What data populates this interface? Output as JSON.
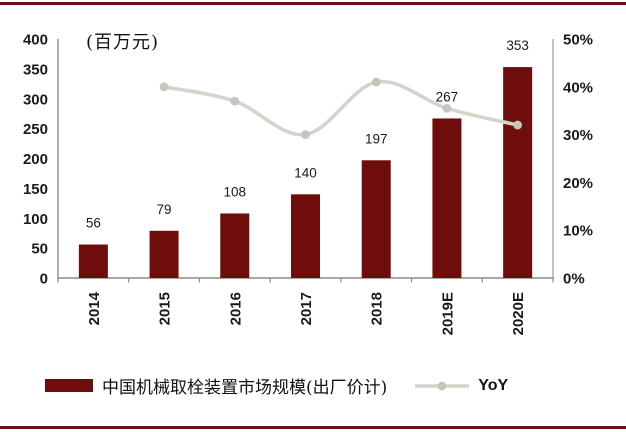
{
  "accent": "#6F0D0D",
  "line_color": "#D5D3CC",
  "marker_color": "#C6C4BD",
  "axis_line_color": "#8C8C8C",
  "right_axis_line_color": "#ACACAC",
  "unit_label": "(百万元)",
  "legend": {
    "bar_label": "中国机械取栓装置市场规模(出厂价计)",
    "line_label": "YoY"
  },
  "chart_data": {
    "type": "bar+line",
    "categories": [
      "2014",
      "2015",
      "2016",
      "2017",
      "2018",
      "2019E",
      "2020E"
    ],
    "series": [
      {
        "name": "中国机械取栓装置市场规模(出厂价计)",
        "type": "bar",
        "axis": "left",
        "values": [
          56,
          79,
          108,
          140,
          197,
          267,
          353
        ]
      },
      {
        "name": "YoY",
        "type": "line",
        "axis": "right",
        "unit": "%",
        "values": [
          null,
          40,
          37,
          30,
          41,
          35.5,
          32
        ]
      }
    ],
    "bar_data_labels": [
      "56",
      "79",
      "108",
      "140",
      "197",
      "267",
      "353"
    ],
    "left_axis": {
      "title": "(百万元)",
      "min": 0,
      "max": 400,
      "step": 50,
      "tick_labels": [
        "400",
        "350",
        "300",
        "250",
        "200",
        "150",
        "100",
        "50",
        "0"
      ]
    },
    "right_axis": {
      "min": 0,
      "max": 50,
      "step": 10,
      "tick_labels": [
        "50%",
        "40%",
        "30%",
        "20%",
        "10%",
        "0%"
      ]
    },
    "legend_position": "bottom",
    "grid": false
  }
}
